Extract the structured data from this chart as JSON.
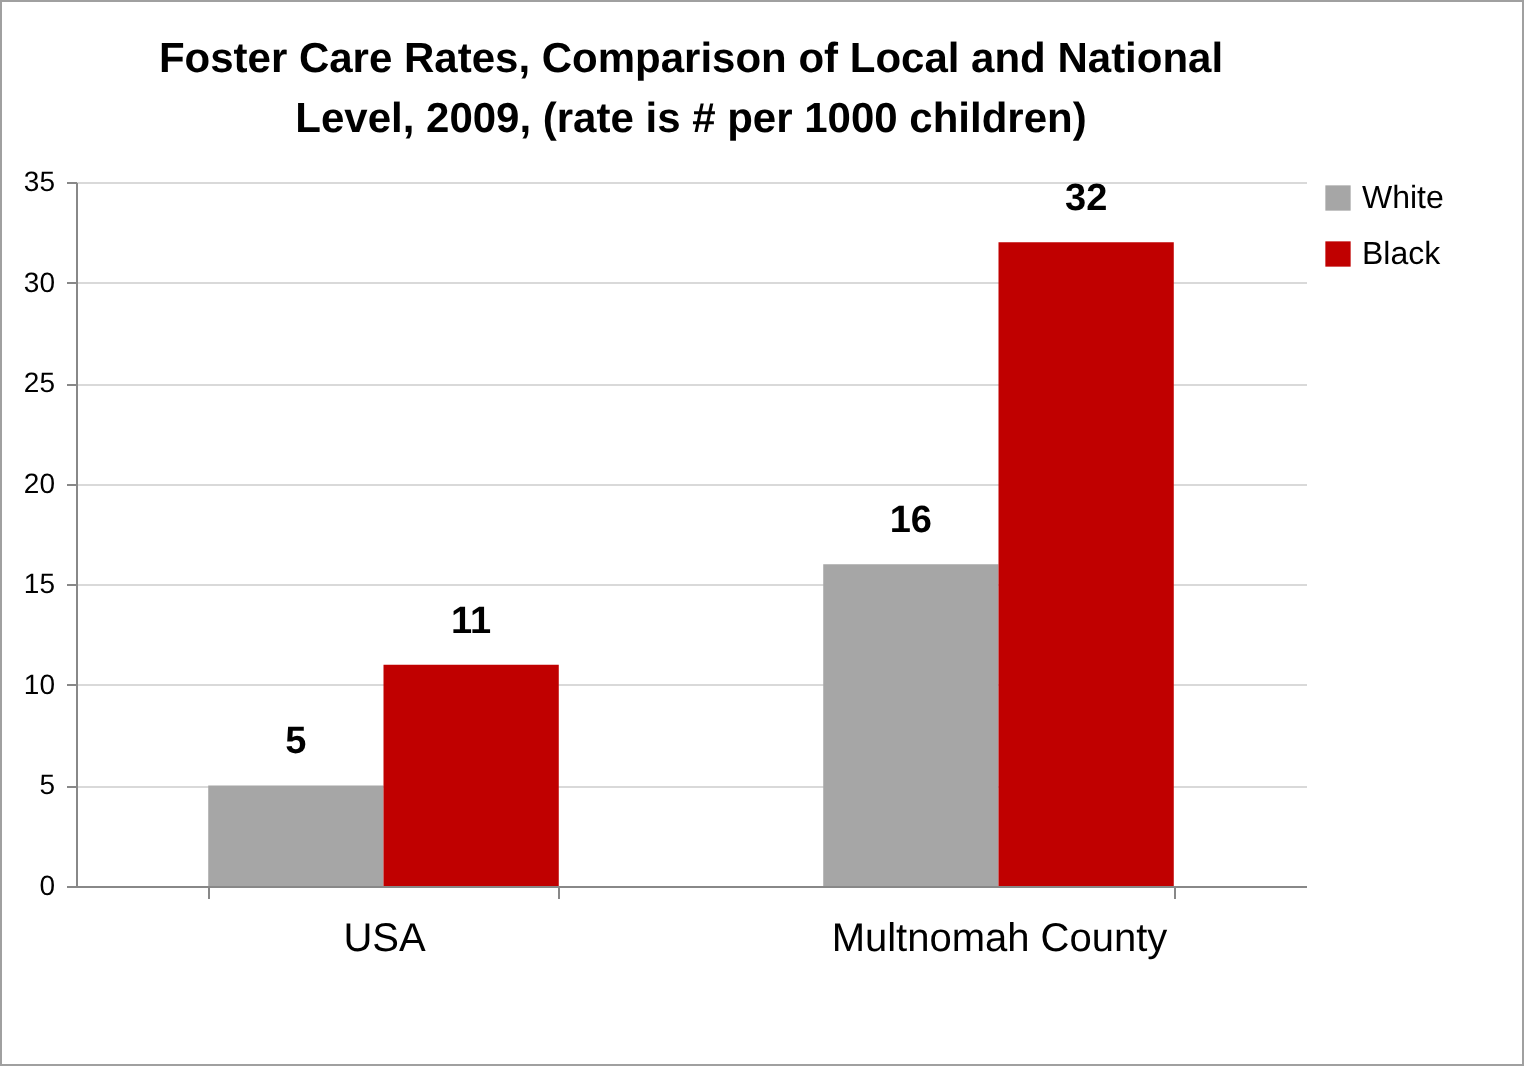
{
  "chart_data": {
    "type": "bar",
    "title": "Foster Care Rates, Comparison of Local and National Level, 2009, (rate is # per 1000 children)",
    "categories": [
      "USA",
      "Multnomah County"
    ],
    "series": [
      {
        "name": "White",
        "color": "#a6a6a6",
        "values": [
          5,
          16
        ]
      },
      {
        "name": "Black",
        "color": "#c00000",
        "values": [
          11,
          32
        ]
      }
    ],
    "ylim": [
      0,
      35
    ],
    "yticks": [
      0,
      5,
      10,
      15,
      20,
      25,
      30,
      35
    ],
    "grid": "y",
    "legend": "right",
    "data_labels": true
  }
}
